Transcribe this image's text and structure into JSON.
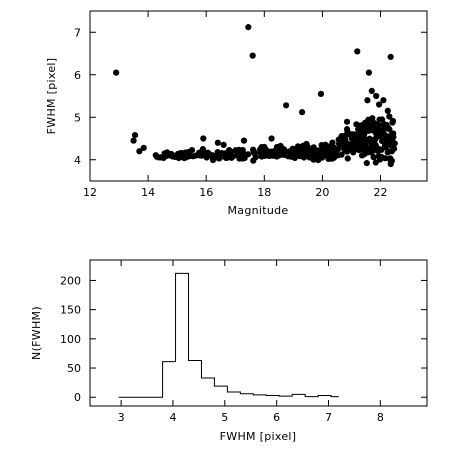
{
  "chart_data": [
    {
      "type": "scatter",
      "xlabel": "Magnitude",
      "ylabel": "FWHM  [pixel]",
      "xlim": [
        12,
        23.6
      ],
      "ylim": [
        3.5,
        7.5
      ],
      "xticks": [
        12,
        14,
        16,
        18,
        20,
        22
      ],
      "xtick_labels": [
        "12",
        "14",
        "16",
        "18",
        "20",
        "22"
      ],
      "yticks": [
        4,
        5,
        6,
        7
      ],
      "ytick_labels": [
        "4",
        "5",
        "6",
        "7"
      ],
      "grid": false,
      "marker_color": "#000000",
      "outliers": [
        [
          12.9,
          6.05
        ],
        [
          17.45,
          7.12
        ],
        [
          17.6,
          6.45
        ],
        [
          21.2,
          6.55
        ],
        [
          22.35,
          6.42
        ],
        [
          21.6,
          6.05
        ],
        [
          19.95,
          5.55
        ],
        [
          19.3,
          5.12
        ],
        [
          18.75,
          5.28
        ],
        [
          13.55,
          4.58
        ],
        [
          13.5,
          4.45
        ],
        [
          13.85,
          4.28
        ],
        [
          13.7,
          4.2
        ],
        [
          15.9,
          4.5
        ],
        [
          16.4,
          4.4
        ],
        [
          16.6,
          4.35
        ],
        [
          17.3,
          4.45
        ],
        [
          18.25,
          4.5
        ],
        [
          18.0,
          4.3
        ],
        [
          21.7,
          5.62
        ],
        [
          21.85,
          5.5
        ],
        [
          21.95,
          5.3
        ],
        [
          21.55,
          5.4
        ],
        [
          22.1,
          5.4
        ],
        [
          22.25,
          5.15
        ]
      ],
      "cloud": [
        {
          "x_range": [
            14.2,
            18.0
          ],
          "y_center": 4.08,
          "y_spread": 0.07,
          "count": 120
        },
        {
          "x_range": [
            18.0,
            20.5
          ],
          "y_center": 4.12,
          "y_spread": 0.1,
          "count": 140
        },
        {
          "x_range": [
            20.5,
            22.5
          ],
          "y_center": 4.3,
          "y_spread": 0.3,
          "count": 210
        }
      ]
    },
    {
      "type": "histogram",
      "xlabel": "FWHM  [pixel]",
      "ylabel": "N(FWHM)",
      "xlim": [
        2.4,
        8.9
      ],
      "ylim": [
        -15,
        235
      ],
      "xticks": [
        3,
        4,
        5,
        6,
        7,
        8
      ],
      "xtick_labels": [
        "3",
        "4",
        "5",
        "6",
        "7",
        "8"
      ],
      "yticks": [
        0,
        50,
        100,
        150,
        200
      ],
      "ytick_labels": [
        "0",
        "50",
        "100",
        "150",
        "200"
      ],
      "grid": false,
      "bin_edges": [
        2.95,
        3.8,
        4.05,
        4.3,
        4.55,
        4.8,
        5.05,
        5.3,
        5.55,
        5.8,
        6.05,
        6.3,
        6.55,
        6.8,
        7.05,
        7.2
      ],
      "counts": [
        0,
        61,
        212,
        63,
        33,
        19,
        9,
        6,
        4,
        3,
        2,
        5,
        1,
        3,
        1
      ]
    }
  ]
}
